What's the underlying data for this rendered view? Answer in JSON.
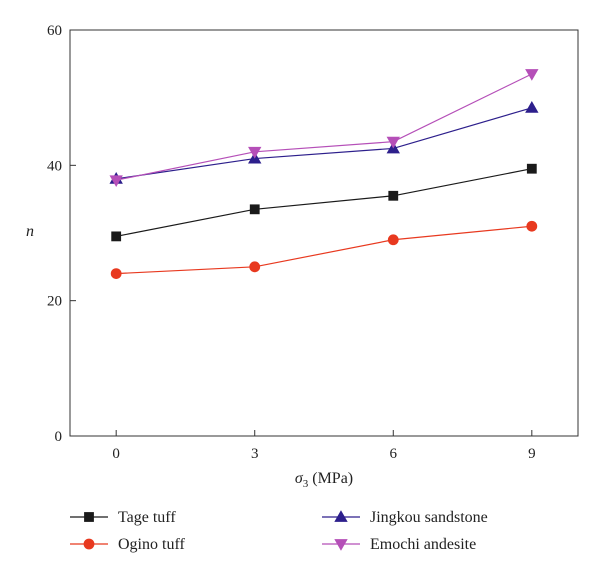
{
  "chart_data": {
    "type": "line",
    "title": "",
    "xlabel": {
      "symbol": "σ",
      "subscript": "3",
      "unit": " (MPa)"
    },
    "ylabel": "n",
    "x": [
      0,
      3,
      6,
      9
    ],
    "xticks": [
      "0",
      "3",
      "6",
      "9"
    ],
    "yticks": [
      "0",
      "20",
      "40",
      "60"
    ],
    "xlim": [
      -1,
      10
    ],
    "ylim": [
      0,
      60
    ],
    "grid": false,
    "legend_position": "bottom",
    "series": [
      {
        "name": "Tage tuff",
        "values": [
          29.5,
          33.5,
          35.5,
          39.5
        ],
        "color": "#1a1a1a",
        "marker": "square"
      },
      {
        "name": "Ogino tuff",
        "values": [
          24,
          25,
          29,
          31
        ],
        "color": "#e8391f",
        "marker": "circle"
      },
      {
        "name": "Jingkou sandstone",
        "values": [
          38,
          41,
          42.5,
          48.5
        ],
        "color": "#2d1f8c",
        "marker": "triangle-up"
      },
      {
        "name": "Emochi andesite",
        "values": [
          37.8,
          42,
          43.5,
          53.5
        ],
        "color": "#b54fb8",
        "marker": "triangle-down"
      }
    ]
  }
}
